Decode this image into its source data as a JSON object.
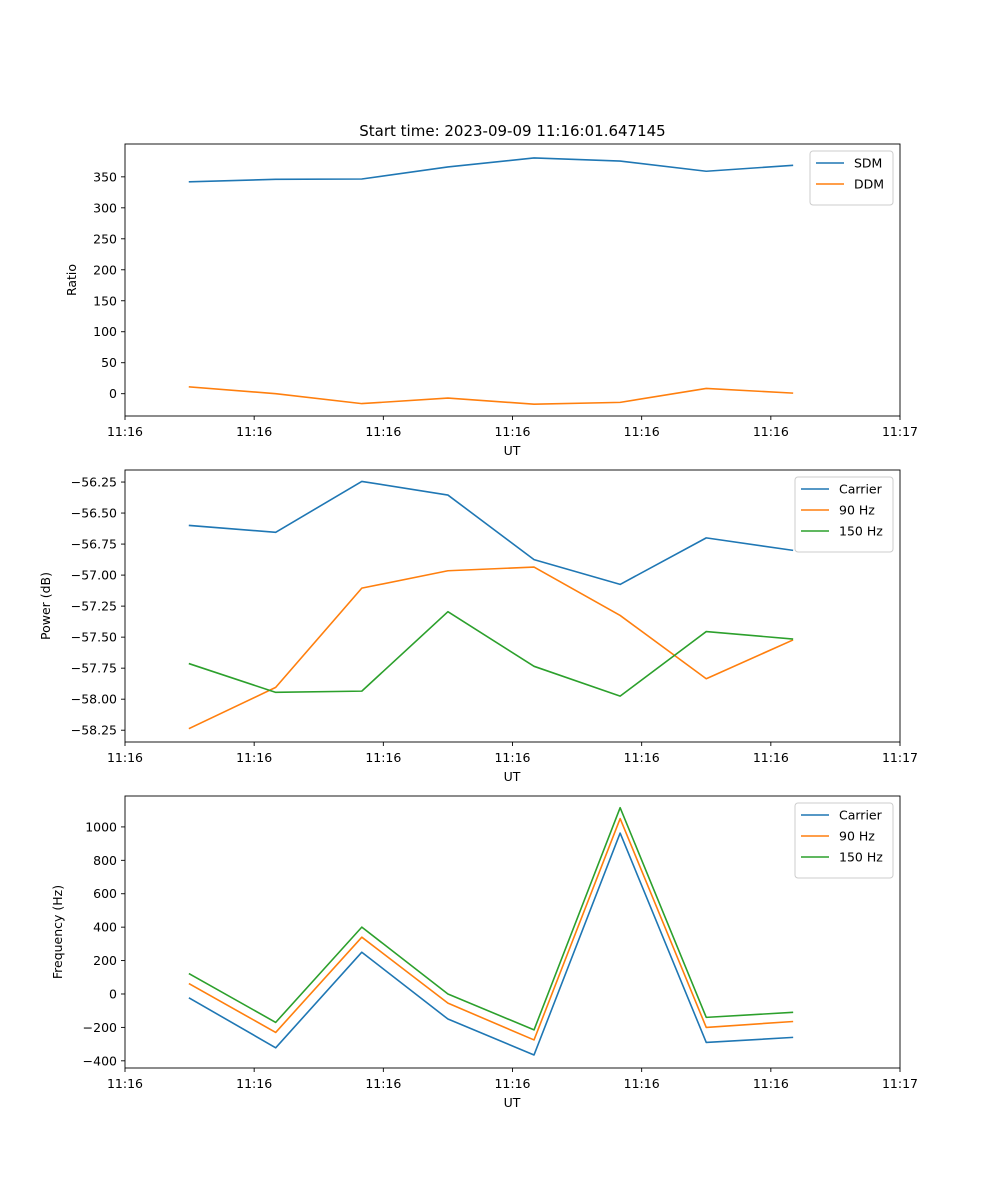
{
  "chart_data": [
    {
      "type": "line",
      "title": "Start time: 2023-09-09 11:16:01.647145",
      "xlabel": "UT",
      "ylabel": "Ratio",
      "x": [
        0,
        1,
        2,
        3,
        4,
        5,
        6,
        7
      ],
      "xlim": [
        -0.75,
        8.25
      ],
      "xticks": [
        -0.75,
        0.75,
        2.25,
        3.75,
        5.25,
        6.75,
        8.25
      ],
      "xtick_labels": [
        "11:16",
        "11:16",
        "11:16",
        "11:16",
        "11:16",
        "11:16",
        "11:17"
      ],
      "ylim": [
        -36,
        403
      ],
      "yticks": [
        0,
        50,
        100,
        150,
        200,
        250,
        300,
        350
      ],
      "ytick_labels": [
        "0",
        "50",
        "100",
        "150",
        "200",
        "250",
        "300",
        "350"
      ],
      "legend_position": "top-right",
      "series": [
        {
          "name": "SDM",
          "color": "#1f77b4",
          "values": [
            342,
            346,
            346.5,
            366,
            380.5,
            375.5,
            359,
            368.5
          ]
        },
        {
          "name": "DDM",
          "color": "#ff7f0e",
          "values": [
            11,
            0,
            -16,
            -7,
            -17,
            -14,
            8.5,
            1
          ]
        }
      ]
    },
    {
      "type": "line",
      "title": "",
      "xlabel": "UT",
      "ylabel": "Power (dB)",
      "x": [
        0,
        1,
        2,
        3,
        4,
        5,
        6,
        7
      ],
      "xlim": [
        -0.75,
        8.25
      ],
      "xticks": [
        -0.75,
        0.75,
        2.25,
        3.75,
        5.25,
        6.75,
        8.25
      ],
      "xtick_labels": [
        "11:16",
        "11:16",
        "11:16",
        "11:16",
        "11:16",
        "11:16",
        "11:17"
      ],
      "ylim": [
        -58.345,
        -56.153
      ],
      "yticks": [
        -56.25,
        -56.5,
        -56.75,
        -57.0,
        -57.25,
        -57.5,
        -57.75,
        -58.0,
        -58.25
      ],
      "ytick_labels": [
        "−56.25",
        "−56.50",
        "−56.75",
        "−57.00",
        "−57.25",
        "−57.50",
        "−57.75",
        "−58.00",
        "−58.25"
      ],
      "legend_position": "top-right",
      "series": [
        {
          "name": "Carrier",
          "color": "#1f77b4",
          "values": [
            -56.6,
            -56.655,
            -56.245,
            -56.355,
            -56.875,
            -57.075,
            -56.7,
            -56.8
          ]
        },
        {
          "name": "90 Hz",
          "color": "#ff7f0e",
          "values": [
            -58.235,
            -57.905,
            -57.105,
            -56.965,
            -56.935,
            -57.325,
            -57.835,
            -57.525
          ]
        },
        {
          "name": "150 Hz",
          "color": "#2ca02c",
          "values": [
            -57.715,
            -57.945,
            -57.935,
            -57.295,
            -57.735,
            -57.975,
            -57.455,
            -57.515
          ]
        }
      ]
    },
    {
      "type": "line",
      "title": "",
      "xlabel": "UT",
      "ylabel": "Frequency (Hz)",
      "x": [
        0,
        1,
        2,
        3,
        4,
        5,
        6,
        7
      ],
      "xlim": [
        -0.75,
        8.25
      ],
      "xticks": [
        -0.75,
        0.75,
        2.25,
        3.75,
        5.25,
        6.75,
        8.25
      ],
      "xtick_labels": [
        "11:16",
        "11:16",
        "11:16",
        "11:16",
        "11:16",
        "11:16",
        "11:17"
      ],
      "ylim": [
        -443,
        1185
      ],
      "yticks": [
        -400,
        -200,
        0,
        200,
        400,
        600,
        800,
        1000
      ],
      "ytick_labels": [
        "−400",
        "−200",
        "0",
        "200",
        "400",
        "600",
        "800",
        "1000"
      ],
      "legend_position": "top-right",
      "series": [
        {
          "name": "Carrier",
          "color": "#1f77b4",
          "values": [
            -25,
            -322,
            250,
            -150,
            -365,
            963,
            -290,
            -260
          ]
        },
        {
          "name": "90 Hz",
          "color": "#ff7f0e",
          "values": [
            60,
            -230,
            340,
            -55,
            -275,
            1050,
            -200,
            -165
          ]
        },
        {
          "name": "150 Hz",
          "color": "#2ca02c",
          "values": [
            120,
            -170,
            400,
            0,
            -215,
            1115,
            -140,
            -110
          ]
        }
      ]
    }
  ]
}
